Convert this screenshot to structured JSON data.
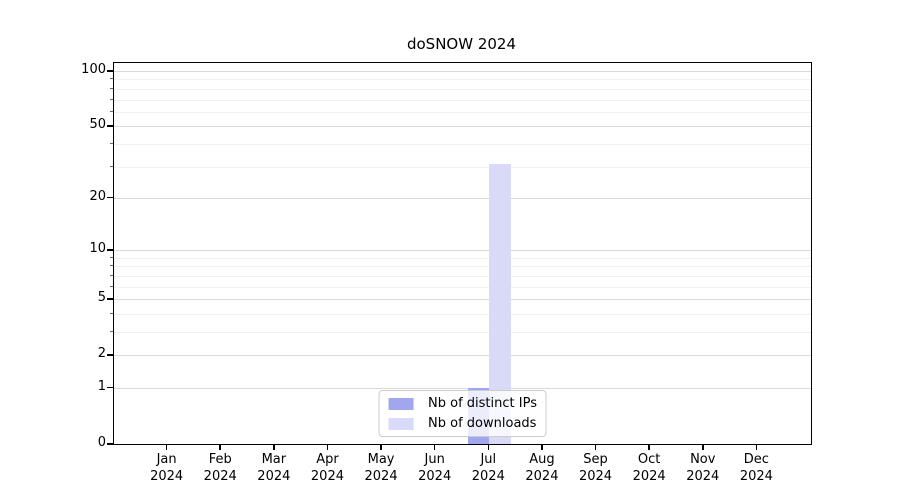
{
  "chart_data": {
    "type": "bar",
    "title": "doSNOW 2024",
    "categories": [
      {
        "month": "Jan",
        "year": "2024"
      },
      {
        "month": "Feb",
        "year": "2024"
      },
      {
        "month": "Mar",
        "year": "2024"
      },
      {
        "month": "Apr",
        "year": "2024"
      },
      {
        "month": "May",
        "year": "2024"
      },
      {
        "month": "Jun",
        "year": "2024"
      },
      {
        "month": "Jul",
        "year": "2024"
      },
      {
        "month": "Aug",
        "year": "2024"
      },
      {
        "month": "Sep",
        "year": "2024"
      },
      {
        "month": "Oct",
        "year": "2024"
      },
      {
        "month": "Nov",
        "year": "2024"
      },
      {
        "month": "Dec",
        "year": "2024"
      }
    ],
    "series": [
      {
        "name": "Nb of distinct IPs",
        "color": "#a1a7ee",
        "values": [
          0,
          0,
          0,
          0,
          0,
          0,
          1,
          0,
          0,
          0,
          0,
          0
        ]
      },
      {
        "name": "Nb of downloads",
        "color": "#d8daf8",
        "values": [
          0,
          0,
          0,
          0,
          0,
          0,
          31,
          0,
          0,
          0,
          0,
          0
        ]
      }
    ],
    "yscale": "log1p",
    "ylim": [
      0,
      110.6
    ],
    "yticks": [
      0,
      1,
      2,
      5,
      10,
      20,
      50,
      100
    ],
    "yticks_minor": [
      3,
      4,
      6,
      7,
      8,
      9,
      30,
      40,
      60,
      70,
      80,
      90
    ],
    "grid": "horizontal major and minor",
    "legend_position": "lower center",
    "colors": {
      "major_grid": "#d9d9d9",
      "minor_grid": "#f1f1f1",
      "axis": "#000000",
      "legend_border": "#cccccc"
    }
  }
}
